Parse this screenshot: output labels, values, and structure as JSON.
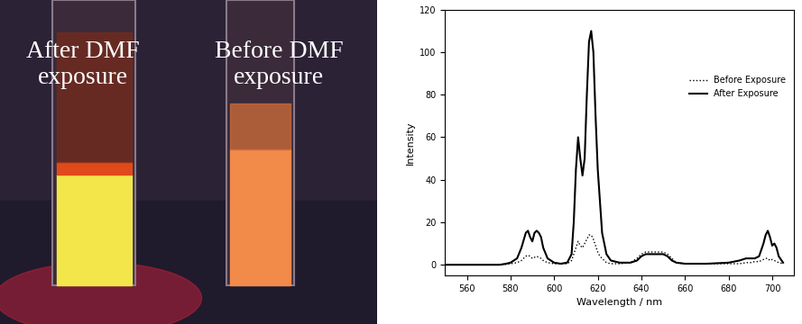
{
  "photo": {
    "labels": [
      "After DMF\nexposure",
      "Before DMF\nexposure"
    ]
  },
  "chart_data": {
    "type": "line",
    "x_label": "Wavelength / nm",
    "y_label": "Intensity",
    "x": [
      550,
      575,
      578,
      580,
      583,
      585,
      587,
      588,
      589,
      590,
      591,
      592,
      593,
      594,
      595,
      597,
      600,
      603,
      606,
      608,
      609,
      610,
      611,
      612,
      613,
      614,
      615,
      616,
      617,
      618,
      619,
      620,
      621,
      622,
      624,
      626,
      630,
      635,
      638,
      640,
      642,
      645,
      648,
      650,
      652,
      654,
      656,
      660,
      670,
      680,
      685,
      688,
      690,
      692,
      694,
      696,
      697,
      698,
      699,
      700,
      701,
      702,
      703,
      705
    ],
    "series": [
      {
        "name": "Before Exposure",
        "color": "#000000",
        "line_style": "dotted",
        "values": [
          0,
          0,
          0.2,
          0.5,
          1,
          2,
          4,
          4.5,
          4,
          3,
          3.5,
          4,
          3.5,
          3,
          2,
          1,
          0.5,
          0.5,
          0.5,
          2,
          5,
          8,
          11,
          9,
          8,
          10,
          12,
          14,
          14,
          12,
          9,
          6,
          4,
          3,
          1,
          0.5,
          0.5,
          1,
          3,
          5,
          6,
          6,
          6,
          6,
          5,
          3,
          1,
          0.5,
          0.5,
          0.5,
          0.5,
          1,
          1,
          1.5,
          1.5,
          2.5,
          3,
          3,
          2,
          2.5,
          2,
          1.5,
          1,
          0.5
        ]
      },
      {
        "name": "After Exposure",
        "color": "#000000",
        "line_style": "solid",
        "values": [
          0,
          0,
          0.5,
          1,
          3,
          8,
          15,
          16,
          13,
          11,
          15,
          16,
          15,
          13,
          8,
          3,
          1,
          0.5,
          1,
          5,
          20,
          45,
          60,
          50,
          42,
          50,
          80,
          105,
          110,
          100,
          70,
          45,
          30,
          15,
          5,
          2,
          1,
          1,
          2,
          4,
          5,
          5,
          5,
          5,
          4,
          2,
          1,
          0.5,
          0.5,
          1,
          2,
          3,
          3,
          3,
          4,
          10,
          14,
          16,
          13,
          9,
          10,
          8,
          4,
          1
        ]
      }
    ],
    "xlim": [
      550,
      710
    ],
    "xticks": [
      560,
      580,
      600,
      620,
      640,
      660,
      680,
      700
    ],
    "ylim": [
      -5,
      120
    ],
    "yticks": [
      0,
      20,
      40,
      60,
      80,
      100,
      120
    ],
    "legend": "upper right",
    "grid": false
  }
}
